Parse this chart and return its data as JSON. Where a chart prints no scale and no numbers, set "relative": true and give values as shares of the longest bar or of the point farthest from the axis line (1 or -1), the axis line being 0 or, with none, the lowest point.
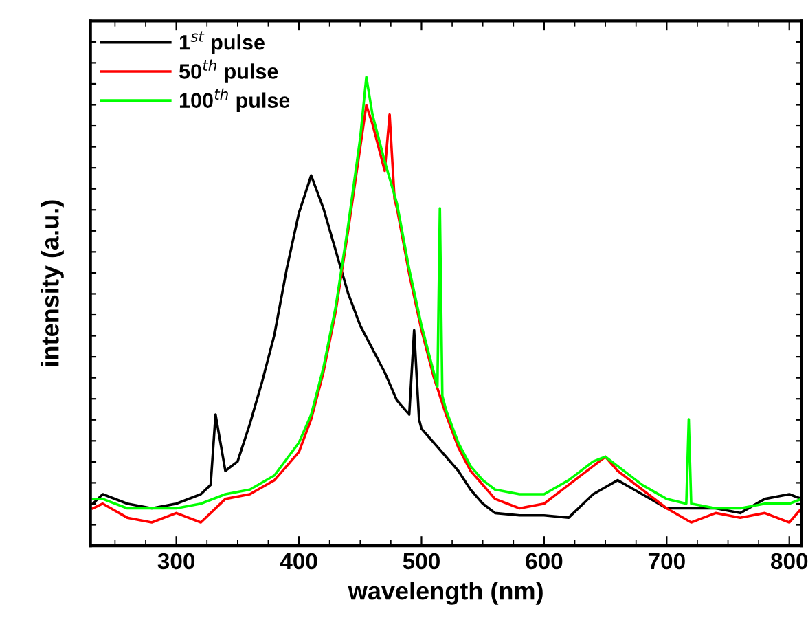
{
  "chart_data": {
    "type": "line",
    "relative": true,
    "xlabel": "wavelength (nm)",
    "ylabel": "intensity (a.u.)",
    "xlim": [
      230,
      810
    ],
    "xticks": [
      300,
      400,
      500,
      600,
      700,
      800
    ],
    "tick_labels": "x",
    "grid": false,
    "legend": "top left",
    "marker": "none",
    "line_style": "solid",
    "series": [
      {
        "name": "1$^{st}$ pulse",
        "color": "#000000",
        "x": [
          232,
          240,
          260,
          280,
          300,
          320,
          328,
          332,
          340,
          350,
          360,
          370,
          380,
          390,
          400,
          410,
          420,
          430,
          440,
          450,
          460,
          470,
          480,
          490,
          494,
          498,
          500,
          510,
          520,
          530,
          540,
          550,
          560,
          580,
          600,
          620,
          640,
          660,
          680,
          700,
          720,
          740,
          760,
          780,
          800,
          810
        ],
        "values": [
          0.09,
          0.11,
          0.09,
          0.08,
          0.09,
          0.11,
          0.13,
          0.28,
          0.16,
          0.18,
          0.26,
          0.35,
          0.45,
          0.59,
          0.71,
          0.79,
          0.72,
          0.63,
          0.54,
          0.47,
          0.42,
          0.37,
          0.31,
          0.28,
          0.46,
          0.27,
          0.25,
          0.22,
          0.19,
          0.16,
          0.12,
          0.09,
          0.07,
          0.065,
          0.065,
          0.06,
          0.11,
          0.14,
          0.11,
          0.08,
          0.08,
          0.08,
          0.07,
          0.1,
          0.11,
          0.1
        ]
      },
      {
        "name": "50$^{th}$ pulse",
        "color": "#ff0000",
        "x": [
          232,
          240,
          260,
          280,
          300,
          320,
          340,
          360,
          380,
          400,
          410,
          420,
          430,
          440,
          450,
          455,
          460,
          470,
          474,
          478,
          480,
          490,
          500,
          510,
          520,
          530,
          540,
          550,
          560,
          580,
          600,
          620,
          640,
          650,
          660,
          680,
          700,
          720,
          740,
          760,
          780,
          800,
          810
        ],
        "values": [
          0.08,
          0.09,
          0.06,
          0.05,
          0.07,
          0.05,
          0.1,
          0.11,
          0.14,
          0.2,
          0.27,
          0.37,
          0.5,
          0.67,
          0.85,
          0.94,
          0.9,
          0.8,
          0.92,
          0.74,
          0.72,
          0.58,
          0.46,
          0.36,
          0.28,
          0.21,
          0.16,
          0.13,
          0.1,
          0.08,
          0.09,
          0.13,
          0.17,
          0.19,
          0.16,
          0.12,
          0.08,
          0.05,
          0.07,
          0.06,
          0.07,
          0.05,
          0.08
        ]
      },
      {
        "name": "100$^{th}$ pulse",
        "color": "#00ff00",
        "x": [
          232,
          240,
          260,
          280,
          300,
          320,
          340,
          360,
          380,
          400,
          410,
          420,
          430,
          440,
          450,
          455,
          460,
          470,
          480,
          490,
          500,
          510,
          513,
          515,
          517,
          520,
          530,
          540,
          550,
          560,
          580,
          600,
          620,
          640,
          650,
          660,
          680,
          700,
          716,
          718,
          720,
          740,
          760,
          780,
          800,
          810
        ],
        "values": [
          0.1,
          0.1,
          0.08,
          0.08,
          0.08,
          0.09,
          0.11,
          0.12,
          0.15,
          0.22,
          0.28,
          0.38,
          0.51,
          0.68,
          0.87,
          1.0,
          0.92,
          0.82,
          0.73,
          0.59,
          0.47,
          0.37,
          0.34,
          0.72,
          0.32,
          0.29,
          0.22,
          0.17,
          0.14,
          0.12,
          0.11,
          0.11,
          0.14,
          0.18,
          0.19,
          0.17,
          0.13,
          0.1,
          0.09,
          0.27,
          0.09,
          0.08,
          0.08,
          0.09,
          0.09,
          0.1
        ]
      }
    ]
  }
}
